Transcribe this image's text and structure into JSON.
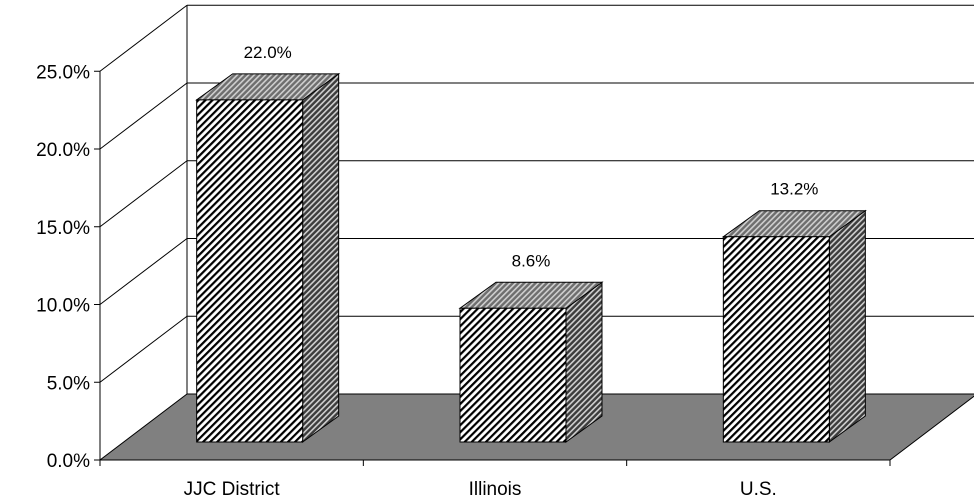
{
  "chart_data": {
    "type": "bar",
    "style": "3d-column",
    "categories": [
      "JJC District",
      "Illinois",
      "U.S."
    ],
    "values": [
      22.0,
      8.6,
      13.2
    ],
    "data_labels": [
      "22.0%",
      "8.6%",
      "13.2%"
    ],
    "y_ticks": [
      {
        "value": 0,
        "label": "0.0%"
      },
      {
        "value": 5,
        "label": "5.0%"
      },
      {
        "value": 10,
        "label": "10.0%"
      },
      {
        "value": 15,
        "label": "15.0%"
      },
      {
        "value": 20,
        "label": "20.0%"
      },
      {
        "value": 25,
        "label": "25.0%"
      }
    ],
    "ylim": [
      0,
      25
    ],
    "title": "",
    "xlabel": "",
    "ylabel": "",
    "grid": true,
    "legend": "none",
    "colors": {
      "floor": "#808080",
      "bar_front_stripe": "#000000",
      "bar_front_bg": "#ffffff",
      "bar_side": "#555555",
      "bar_top": "#8c8c8c"
    }
  }
}
